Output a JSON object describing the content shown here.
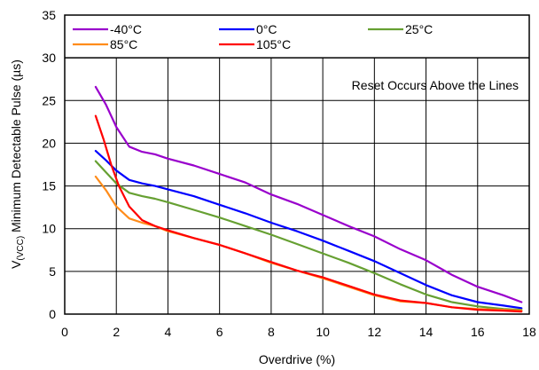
{
  "chart_data": {
    "type": "line",
    "title": "",
    "xlabel": "Overdrive (%)",
    "ylabel_main": "V",
    "ylabel_sub": "(VCC)",
    "ylabel_rest": " Minimum Detectable Pulse (µs)",
    "xlim": [
      0,
      18
    ],
    "ylim": [
      0,
      35
    ],
    "plot_ylim": [
      0,
      30
    ],
    "xticks": [
      0,
      2,
      4,
      6,
      8,
      10,
      12,
      14,
      16,
      18
    ],
    "yticks": [
      0,
      5,
      10,
      15,
      20,
      25,
      30,
      35
    ],
    "grid": true,
    "legend_position": "top",
    "annotation": "Reset Occurs Above the Lines",
    "series": [
      {
        "name": "-40°C",
        "color": "#9900CC",
        "x": [
          1.2,
          1.6,
          2.0,
          2.5,
          3.0,
          3.5,
          4.0,
          5.0,
          6.0,
          7.0,
          8.0,
          9.0,
          10.0,
          11.0,
          12.0,
          13.0,
          14.0,
          15.0,
          16.0,
          17.0,
          17.7
        ],
        "y": [
          26.6,
          24.5,
          21.9,
          19.6,
          19.0,
          18.7,
          18.2,
          17.4,
          16.4,
          15.4,
          14.0,
          12.9,
          11.6,
          10.3,
          9.1,
          7.6,
          6.3,
          4.6,
          3.2,
          2.2,
          1.4
        ]
      },
      {
        "name": "0°C",
        "color": "#0000FF",
        "x": [
          1.2,
          1.6,
          2.0,
          2.5,
          3.0,
          3.5,
          4.0,
          5.0,
          6.0,
          7.0,
          8.0,
          9.0,
          10.0,
          11.0,
          12.0,
          13.0,
          14.0,
          15.0,
          16.0,
          17.0,
          17.7
        ],
        "y": [
          19.1,
          18.0,
          16.8,
          15.7,
          15.3,
          15.0,
          14.6,
          13.8,
          12.8,
          11.8,
          10.7,
          9.7,
          8.6,
          7.4,
          6.2,
          4.8,
          3.4,
          2.2,
          1.4,
          1.0,
          0.7
        ]
      },
      {
        "name": "25°C",
        "color": "#66A032",
        "x": [
          1.2,
          1.6,
          2.0,
          2.5,
          3.0,
          3.5,
          4.0,
          5.0,
          6.0,
          7.0,
          8.0,
          9.0,
          10.0,
          11.0,
          12.0,
          13.0,
          14.0,
          15.0,
          16.0,
          17.0,
          17.7
        ],
        "y": [
          17.9,
          16.6,
          15.3,
          14.2,
          13.8,
          13.5,
          13.1,
          12.2,
          11.3,
          10.3,
          9.3,
          8.2,
          7.1,
          6.0,
          4.8,
          3.5,
          2.3,
          1.4,
          0.9,
          0.6,
          0.5
        ]
      },
      {
        "name": "85°C",
        "color": "#FF8C1A",
        "x": [
          1.2,
          1.6,
          2.0,
          2.5,
          3.0,
          3.5,
          4.0,
          5.0,
          6.0,
          7.0,
          8.0,
          9.0,
          10.0,
          11.0,
          12.0,
          13.0,
          14.0,
          15.0,
          16.0,
          17.0,
          17.7
        ],
        "y": [
          16.1,
          14.5,
          12.6,
          11.2,
          10.7,
          10.3,
          9.7,
          8.9,
          8.1,
          7.1,
          6.0,
          5.1,
          4.2,
          3.2,
          2.2,
          1.5,
          1.3,
          0.8,
          0.6,
          0.5,
          0.4
        ]
      },
      {
        "name": "105°C",
        "color": "#FF0000",
        "x": [
          1.2,
          1.5,
          1.8,
          2.1,
          2.5,
          3.0,
          3.5,
          4.0,
          5.0,
          6.0,
          7.0,
          8.0,
          9.0,
          10.0,
          11.0,
          12.0,
          13.0,
          14.0,
          15.0,
          16.0,
          17.0,
          17.7
        ],
        "y": [
          23.2,
          20.5,
          17.5,
          15.0,
          12.6,
          11.0,
          10.3,
          9.8,
          8.9,
          8.1,
          7.1,
          6.1,
          5.1,
          4.3,
          3.3,
          2.3,
          1.6,
          1.3,
          0.8,
          0.5,
          0.4,
          0.3
        ]
      }
    ]
  }
}
